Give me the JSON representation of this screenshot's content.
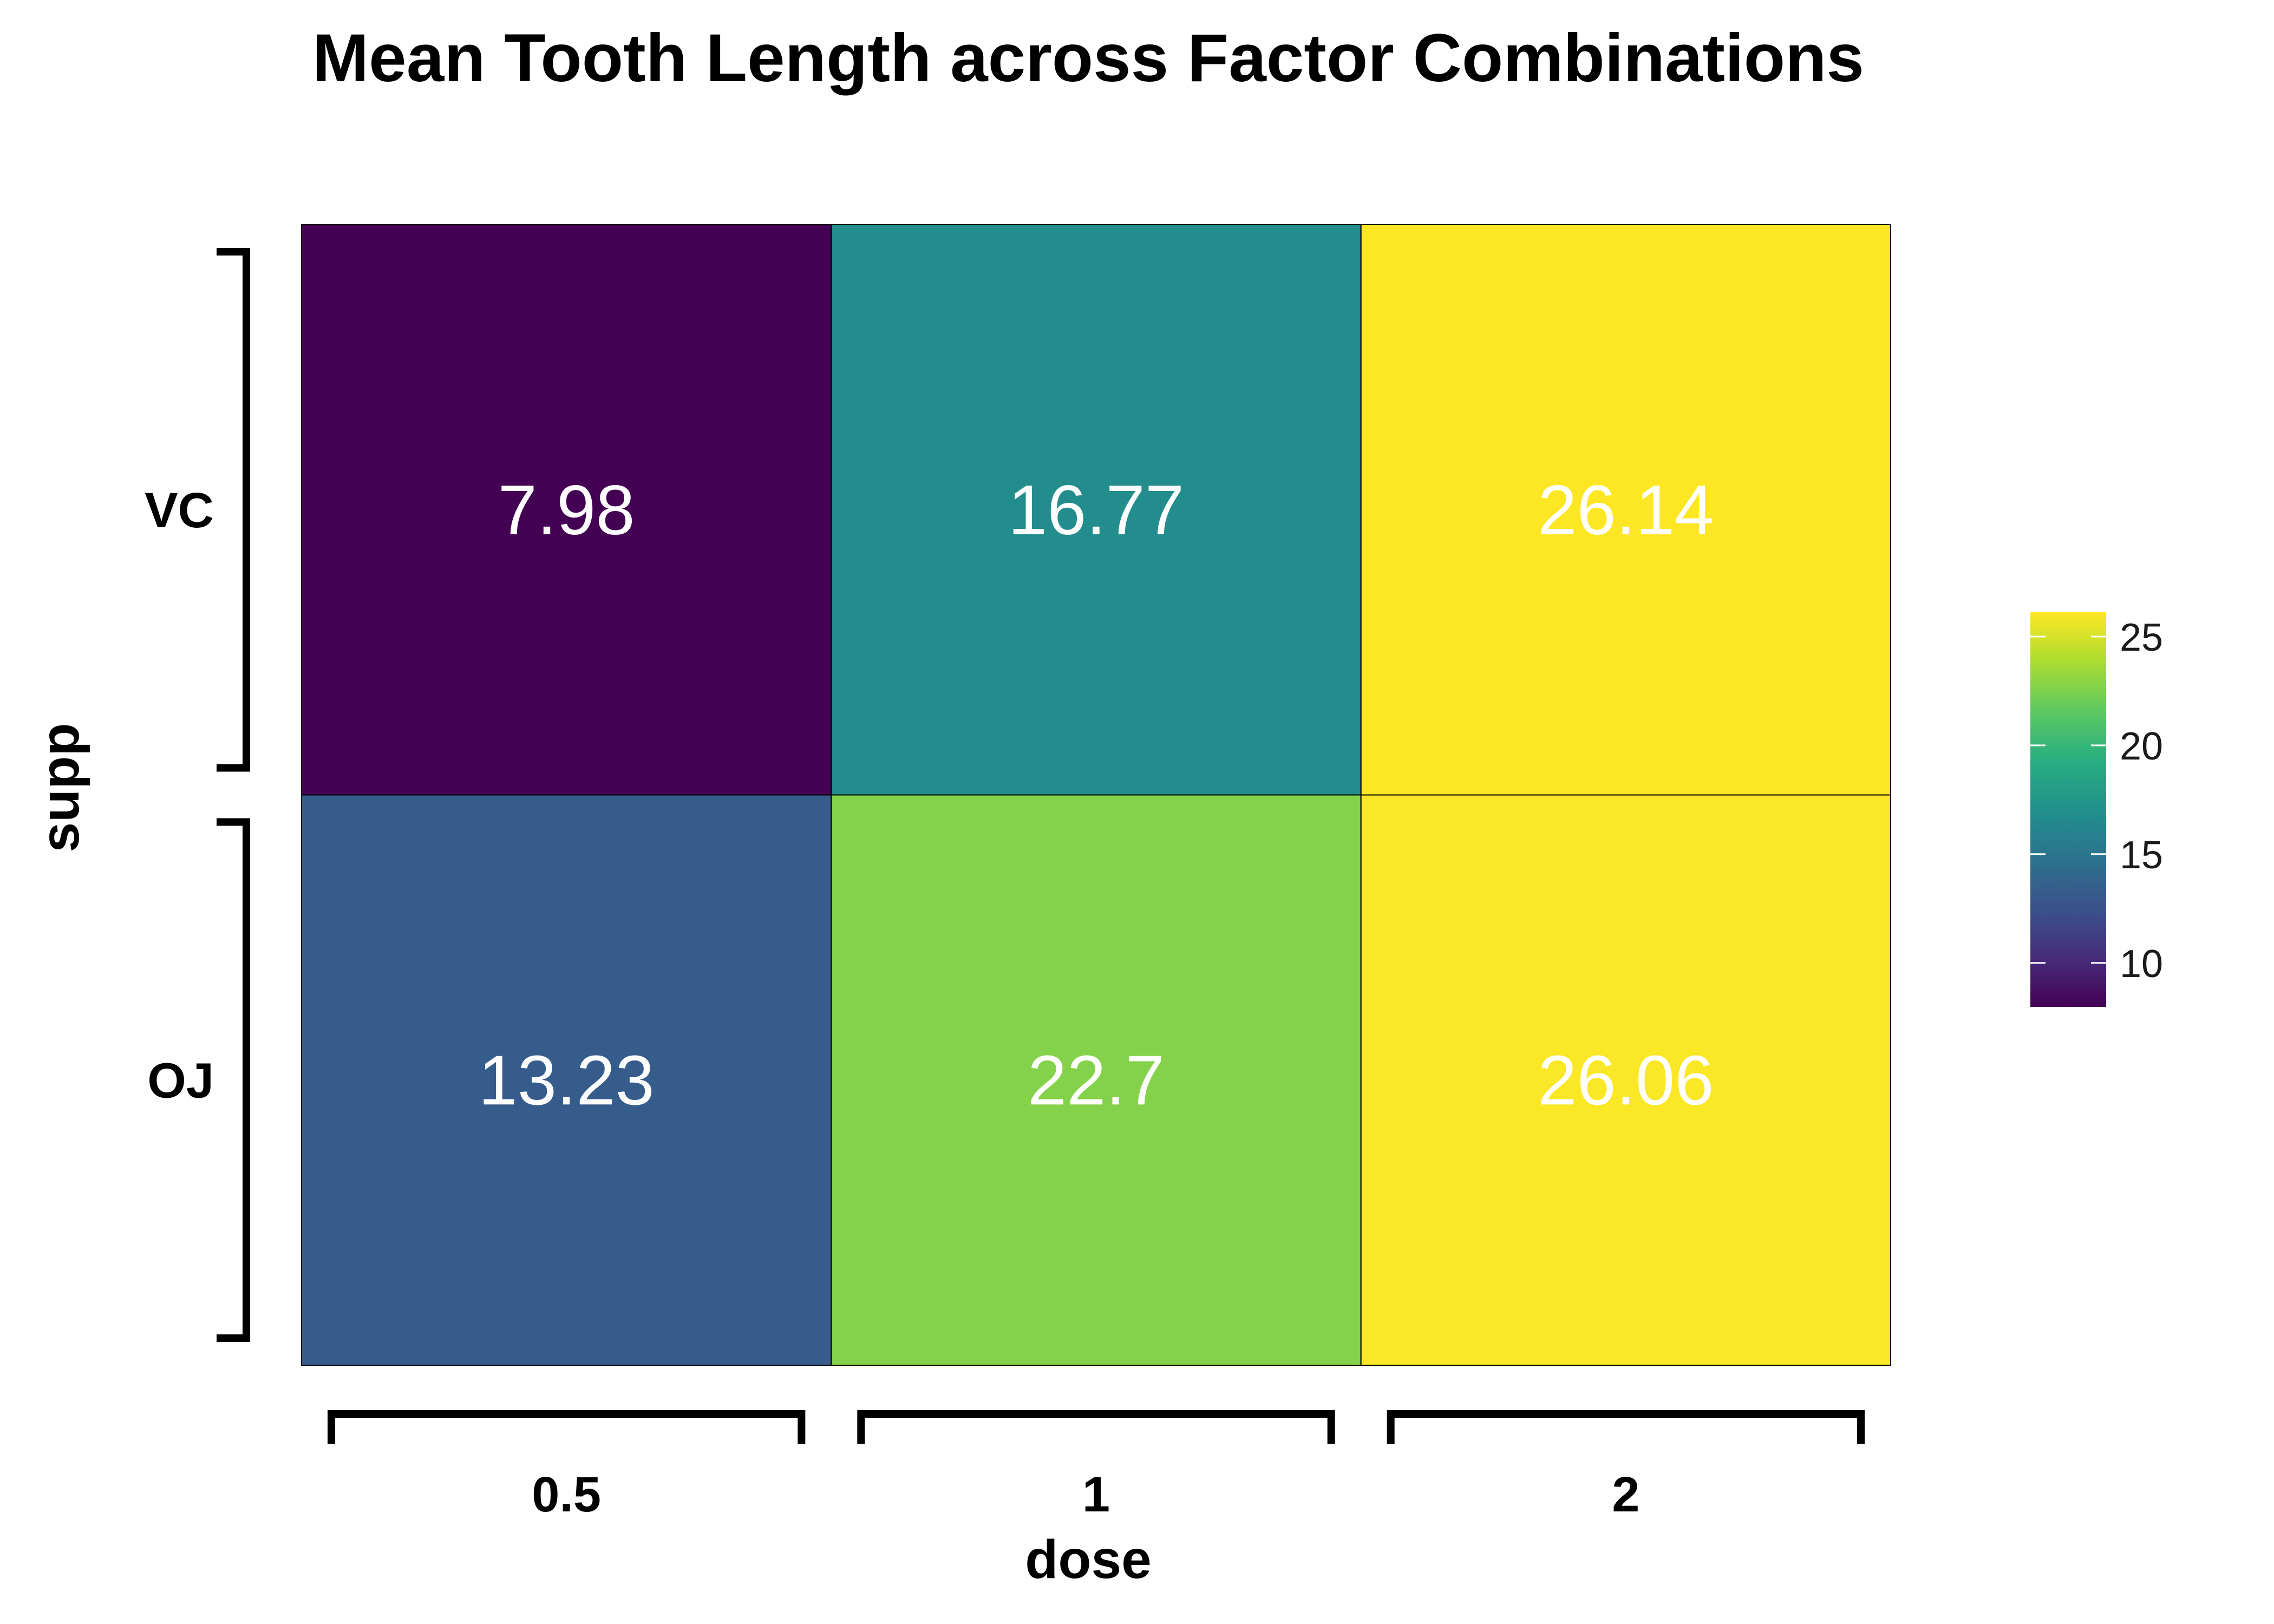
{
  "chart_data": {
    "type": "heatmap",
    "title": "Mean Tooth Length across Factor Combinations",
    "xlabel": "dose",
    "ylabel": "supp",
    "x_categories": [
      "0.5",
      "1",
      "2"
    ],
    "y_categories": [
      "VC",
      "OJ"
    ],
    "cells": [
      {
        "x": "0.5",
        "y": "VC",
        "value": 7.98,
        "label": "7.98"
      },
      {
        "x": "1",
        "y": "VC",
        "value": 16.77,
        "label": "16.77"
      },
      {
        "x": "2",
        "y": "VC",
        "value": 26.14,
        "label": "26.14"
      },
      {
        "x": "0.5",
        "y": "OJ",
        "value": 13.23,
        "label": "13.23"
      },
      {
        "x": "1",
        "y": "OJ",
        "value": 22.7,
        "label": "22.7"
      },
      {
        "x": "2",
        "y": "OJ",
        "value": 26.06,
        "label": "26.06"
      }
    ],
    "colorscale": "viridis",
    "value_range": [
      7.98,
      26.14
    ],
    "legend": {
      "ticks": [
        10,
        15,
        20,
        25
      ],
      "tick_labels": [
        "10",
        "15",
        "20",
        "25"
      ],
      "placement": "right"
    },
    "grid": false
  }
}
